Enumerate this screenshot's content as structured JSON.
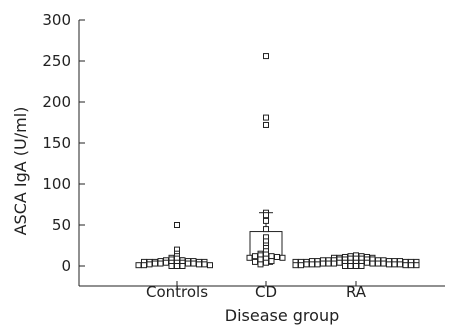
{
  "chart_data": {
    "type": "scatter",
    "subtype": "box-and-dot plot",
    "title": "",
    "xlabel": "Disease group",
    "ylabel": "ASCA IgA (U/ml)",
    "ylim": [
      0,
      300
    ],
    "yticks": [
      0,
      50,
      100,
      150,
      200,
      250,
      300
    ],
    "grid": false,
    "categories": [
      "Controls",
      "CD",
      "RA"
    ],
    "groups": [
      {
        "name": "Controls",
        "box": {
          "whisker_low": 0,
          "q1": 3,
          "median": 5,
          "q3": 7,
          "whisker_high": 10
        },
        "points": [
          50,
          20,
          15,
          12,
          10,
          9,
          8,
          7,
          7,
          6,
          6,
          6,
          5,
          5,
          5,
          5,
          5,
          4,
          4,
          4,
          4,
          3,
          3,
          3,
          3,
          2,
          2,
          2,
          1,
          1,
          1,
          0,
          0,
          0
        ]
      },
      {
        "name": "CD",
        "box": {
          "whisker_low": 2,
          "q1": 10,
          "median": 13,
          "q3": 42,
          "whisker_high": 65
        },
        "points": [
          256,
          181,
          172,
          65,
          62,
          55,
          45,
          35,
          30,
          25,
          22,
          18,
          15,
          14,
          13,
          12,
          12,
          11,
          10,
          10,
          9,
          8,
          6,
          5,
          4,
          2
        ]
      },
      {
        "name": "RA",
        "box": {
          "whisker_low": 0,
          "q1": 2,
          "median": 4,
          "q3": 7,
          "whisker_high": 13
        },
        "points": [
          13,
          12,
          12,
          11,
          11,
          10,
          10,
          10,
          9,
          9,
          9,
          8,
          8,
          8,
          8,
          7,
          7,
          7,
          7,
          7,
          6,
          6,
          6,
          6,
          6,
          5,
          5,
          5,
          5,
          5,
          5,
          4,
          4,
          4,
          4,
          4,
          4,
          3,
          3,
          3,
          3,
          3,
          3,
          2,
          2,
          2,
          2,
          2,
          2,
          1,
          1,
          1,
          1,
          1,
          0,
          0,
          0,
          0
        ]
      }
    ]
  }
}
